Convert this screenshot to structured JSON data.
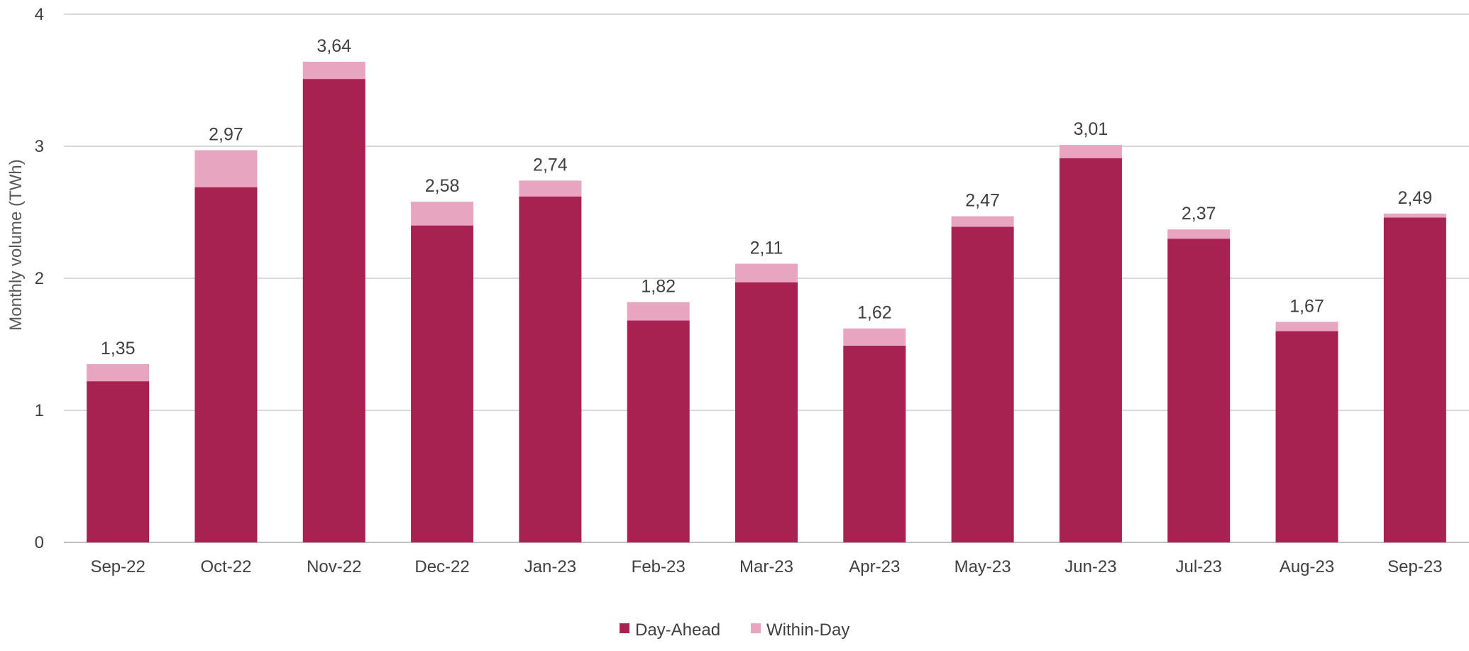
{
  "chart_data": {
    "type": "bar",
    "stacked": true,
    "title": "",
    "xlabel": "",
    "ylabel": "Monthly volume (TWh)",
    "ylim": [
      0,
      4
    ],
    "yticks": [
      "0",
      "1",
      "2",
      "3",
      "4"
    ],
    "grid": true,
    "legend_position": "bottom-center",
    "categories": [
      "Sep-22",
      "Oct-22",
      "Nov-22",
      "Dec-22",
      "Jan-23",
      "Feb-23",
      "Mar-23",
      "Apr-23",
      "May-23",
      "Jun-23",
      "Jul-23",
      "Aug-23",
      "Sep-23"
    ],
    "series": [
      {
        "name": "Day-Ahead",
        "color": "#A72251",
        "values": [
          1.22,
          2.69,
          3.51,
          2.4,
          2.62,
          1.68,
          1.97,
          1.49,
          2.39,
          2.91,
          2.3,
          1.6,
          2.46
        ]
      },
      {
        "name": "Within-Day",
        "color": "#E8A5BF",
        "values": [
          0.13,
          0.28,
          0.13,
          0.18,
          0.12,
          0.14,
          0.14,
          0.13,
          0.08,
          0.1,
          0.07,
          0.07,
          0.03
        ]
      }
    ],
    "totals": [
      "1,35",
      "2,97",
      "3,64",
      "2,58",
      "2,74",
      "1,82",
      "2,11",
      "1,62",
      "2,47",
      "3,01",
      "2,37",
      "1,67",
      "2,49"
    ]
  }
}
